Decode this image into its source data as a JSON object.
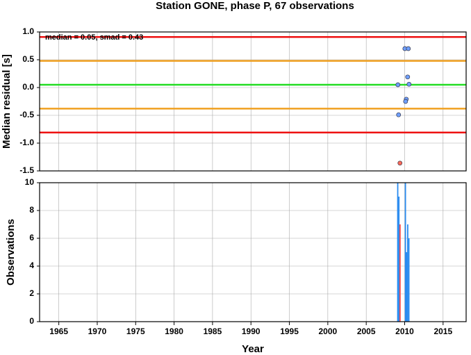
{
  "chart_data": [
    {
      "type": "scatter",
      "title": "Station GONE, phase P, 67 observations",
      "ylabel": "Median residual [s]",
      "annotation": "median = 0.05, smad = 0.43",
      "xlim": [
        1962.5,
        2018.0
      ],
      "xticks": [
        1965,
        1970,
        1975,
        1980,
        1985,
        1990,
        1995,
        2000,
        2005,
        2010,
        2015
      ],
      "ylim": [
        -1.5,
        1.0
      ],
      "yticks": [
        {
          "value": -1.5,
          "label": "-1.5"
        },
        {
          "value": -1.0,
          "label": "-1.0"
        },
        -0.5,
        {
          "value": 0,
          "label": "0.0"
        },
        0.5,
        {
          "value": 1.0,
          "label": "1.0"
        }
      ],
      "grid": true,
      "hlines": [
        {
          "value": 0.91,
          "color": "#ee1111"
        },
        {
          "value": 0.48,
          "color": "#f0a020"
        },
        {
          "value": 0.05,
          "color": "#22dd22"
        },
        {
          "value": -0.38,
          "color": "#f0a020"
        },
        {
          "value": -0.81,
          "color": "#ee1111"
        }
      ],
      "series": [
        {
          "color": "#6fa0ff",
          "x": [
            2009.12,
            2009.21,
            2010.03,
            2010.48,
            2010.39,
            2010.57,
            2010.21,
            2010.12
          ],
          "values": [
            0.05,
            -0.49,
            0.7,
            0.7,
            0.19,
            0.06,
            -0.21,
            -0.25
          ]
        },
        {
          "color": "#ff6a5a",
          "x": [
            2009.39
          ],
          "values": [
            -1.36
          ]
        }
      ]
    },
    {
      "type": "bar",
      "xlabel": "Year",
      "ylabel": "Observations",
      "xlim": [
        1962.5,
        2018.0
      ],
      "xticks": [
        1965,
        1970,
        1975,
        1980,
        1985,
        1990,
        1995,
        2000,
        2005,
        2010,
        2015
      ],
      "ylim": [
        0,
        10
      ],
      "yticks": [
        0,
        2,
        4,
        6,
        8,
        10
      ],
      "grid": true,
      "series": [
        {
          "color": "#2a8cf0",
          "x": [
            2009.1,
            2009.25,
            2010.1,
            2010.25,
            2010.4,
            2010.55
          ],
          "values": [
            10,
            9,
            10,
            5,
            7,
            6
          ]
        },
        {
          "color": "#ff4a4a",
          "x": [
            2009.4
          ],
          "values": [
            7
          ]
        }
      ]
    }
  ]
}
